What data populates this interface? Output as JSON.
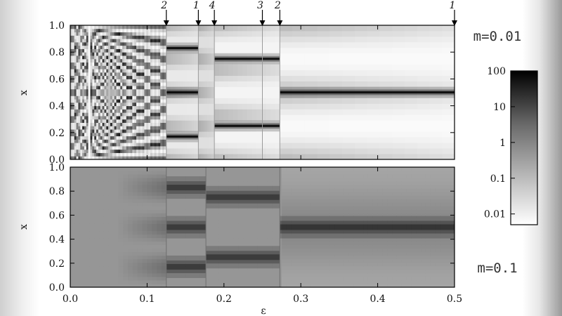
{
  "chart_data": [
    {
      "type": "heatmap",
      "panel_label": "m=0.01",
      "xlabel": "",
      "ylabel": "x",
      "xlim": [
        0.0,
        0.5
      ],
      "ylim": [
        0.0,
        1.0
      ],
      "xticks": [
        "0.0",
        "0.1",
        "0.2",
        "0.3",
        "0.4",
        "0.5"
      ],
      "yticks": [
        "0.0",
        "0.2",
        "0.4",
        "0.6",
        "0.8",
        "1.0"
      ],
      "plateau_boundaries_eps": [
        0.125,
        0.1667,
        0.1875,
        0.25,
        0.2727,
        0.5
      ],
      "markers": [
        {
          "eps": 0.125,
          "label": "2"
        },
        {
          "eps": 0.1667,
          "label": "1"
        },
        {
          "eps": 0.1875,
          "label": "4"
        },
        {
          "eps": 0.25,
          "label": "3"
        },
        {
          "eps": 0.2727,
          "label": "2"
        },
        {
          "eps": 0.5,
          "label": "1"
        }
      ],
      "dark_bands": [
        {
          "eps_range": [
            0.125,
            0.1667
          ],
          "x": [
            0.17,
            0.5,
            0.83
          ]
        },
        {
          "eps_range": [
            0.1875,
            0.2727
          ],
          "x": [
            0.25,
            0.75
          ]
        },
        {
          "eps_range": [
            0.2727,
            0.5
          ],
          "x": [
            0.5
          ]
        }
      ]
    },
    {
      "type": "heatmap",
      "panel_label": "m=0.1",
      "xlabel": "ε",
      "ylabel": "x",
      "xlim": [
        0.0,
        0.5
      ],
      "ylim": [
        0.0,
        1.0
      ],
      "xticks": [
        "0.0",
        "0.1",
        "0.2",
        "0.3",
        "0.4",
        "0.5"
      ],
      "yticks": [
        "0.0",
        "0.2",
        "0.4",
        "0.6",
        "0.8",
        "1.0"
      ],
      "plateau_boundaries_eps": [
        0.125,
        0.1765,
        0.2727
      ],
      "dark_bands": [
        {
          "eps_range": [
            0.125,
            0.1765
          ],
          "x": [
            0.17,
            0.5,
            0.83
          ]
        },
        {
          "eps_range": [
            0.1765,
            0.2727
          ],
          "x": [
            0.25,
            0.75
          ]
        },
        {
          "eps_range": [
            0.2727,
            0.5
          ],
          "x": [
            0.5
          ]
        }
      ]
    }
  ],
  "colorbar": {
    "scale": "log",
    "range": [
      0.005,
      100
    ],
    "ticks": [
      "100",
      "10",
      "1",
      "0.1",
      "0.01"
    ],
    "colors": {
      "high": "#000000",
      "low": "#ffffff"
    }
  }
}
